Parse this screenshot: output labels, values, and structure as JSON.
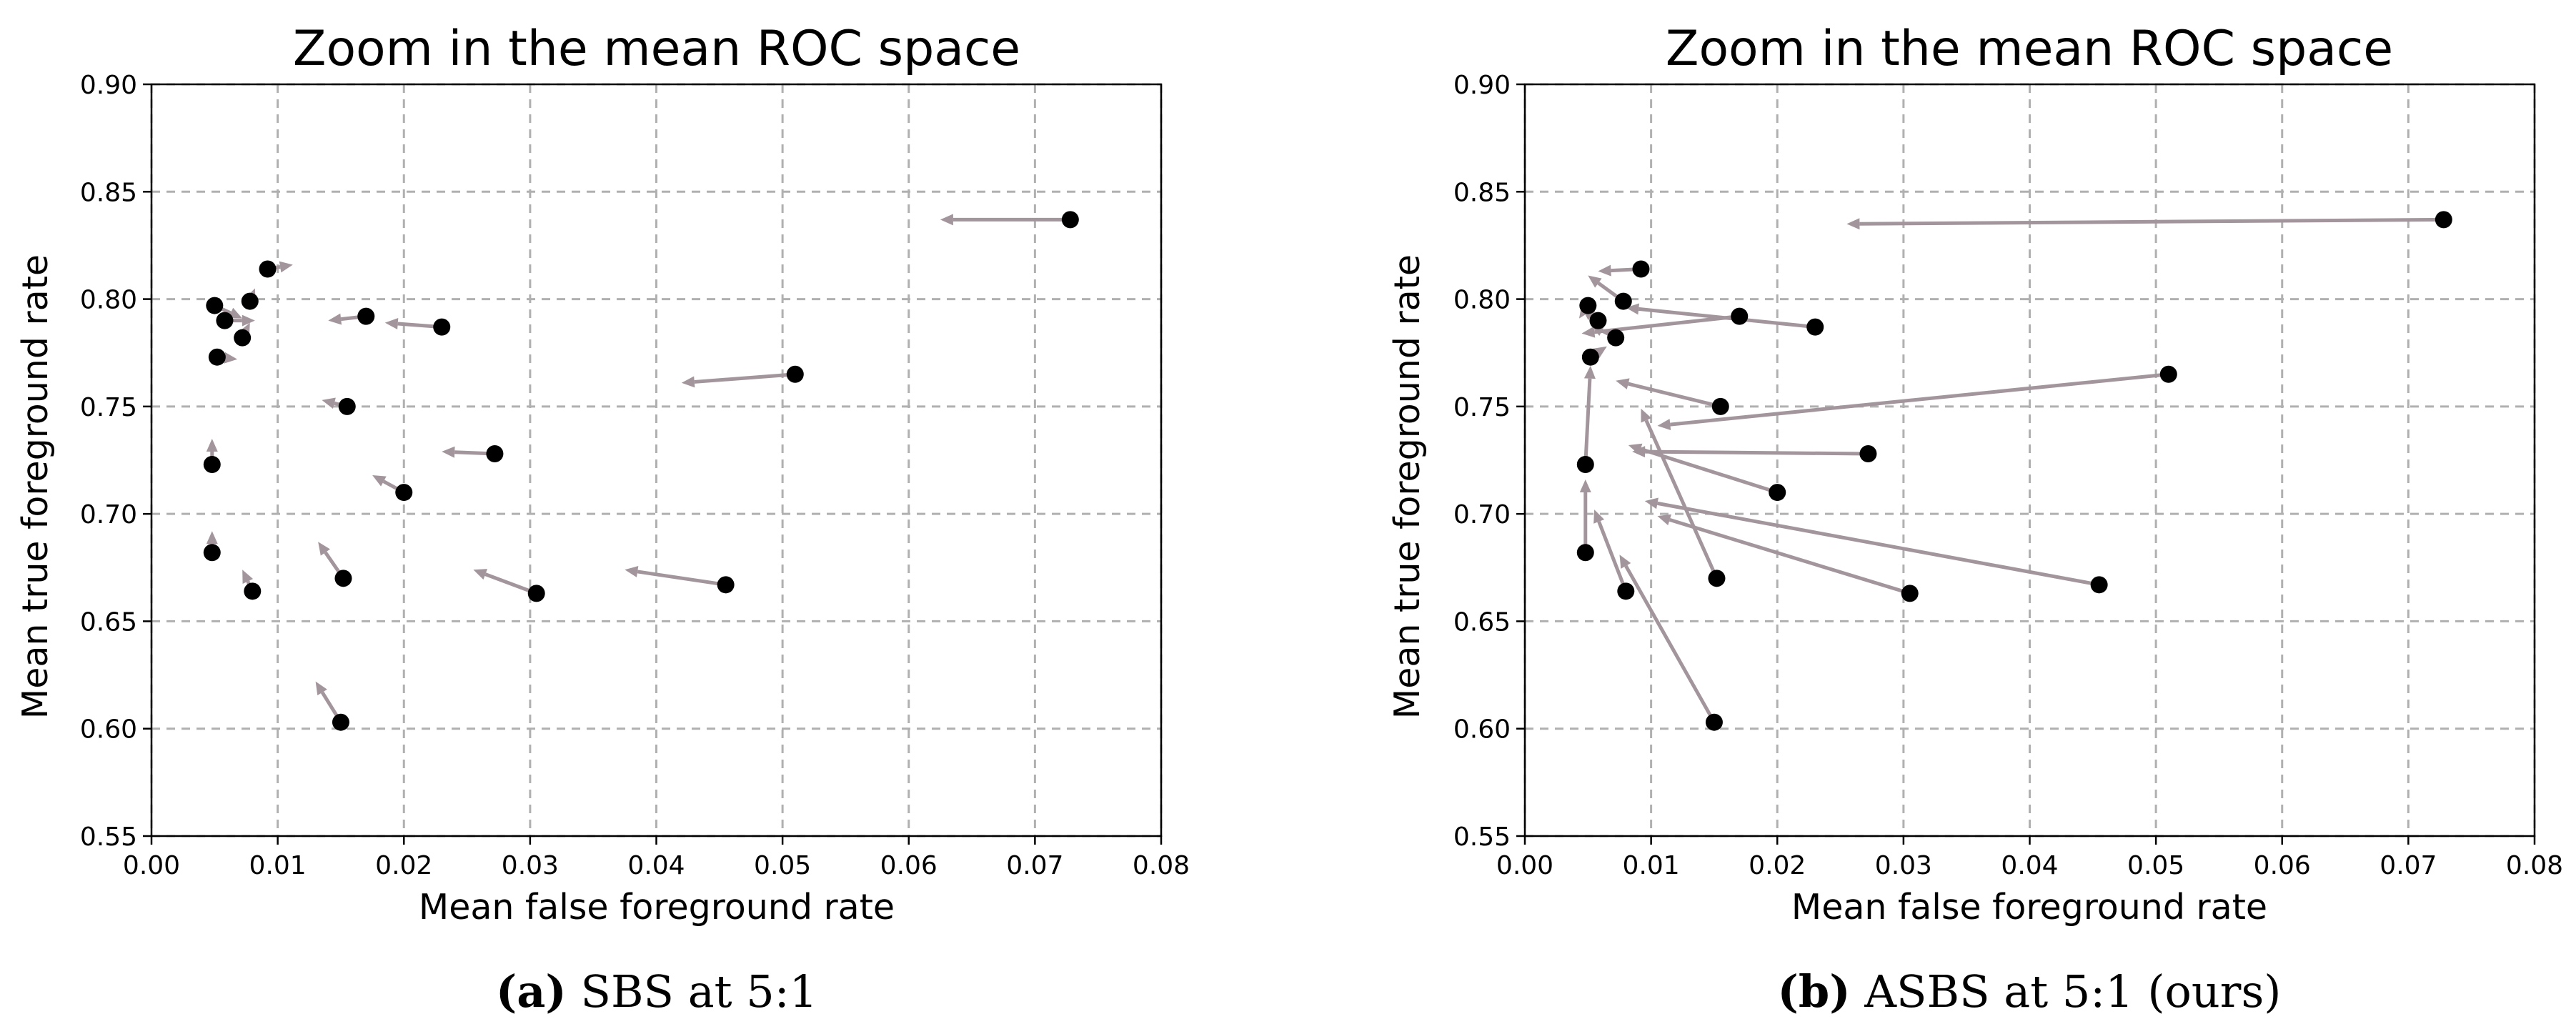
{
  "chart_data": [
    {
      "type": "scatter",
      "title": "Zoom in the mean ROC space",
      "xlabel": "Mean false foreground rate",
      "ylabel": "Mean true foreground rate",
      "xlim": [
        0.0,
        0.08
      ],
      "ylim": [
        0.55,
        0.9
      ],
      "xticks": [
        "0.00",
        "0.01",
        "0.02",
        "0.03",
        "0.04",
        "0.05",
        "0.06",
        "0.07",
        "0.08"
      ],
      "yticks": [
        "0.55",
        "0.60",
        "0.65",
        "0.70",
        "0.75",
        "0.80",
        "0.85",
        "0.90"
      ],
      "grid": true,
      "caption_id": "(a)",
      "caption_text": " SBS at 5:1",
      "points": [
        {
          "x": 0.0728,
          "y": 0.837,
          "x2": 0.0625,
          "y2": 0.837
        },
        {
          "x": 0.051,
          "y": 0.765,
          "x2": 0.042,
          "y2": 0.761
        },
        {
          "x": 0.0455,
          "y": 0.667,
          "x2": 0.0375,
          "y2": 0.674
        },
        {
          "x": 0.0305,
          "y": 0.663,
          "x2": 0.0255,
          "y2": 0.674
        },
        {
          "x": 0.0272,
          "y": 0.728,
          "x2": 0.023,
          "y2": 0.729
        },
        {
          "x": 0.023,
          "y": 0.787,
          "x2": 0.0185,
          "y2": 0.789
        },
        {
          "x": 0.02,
          "y": 0.71,
          "x2": 0.0175,
          "y2": 0.718
        },
        {
          "x": 0.017,
          "y": 0.792,
          "x2": 0.014,
          "y2": 0.79
        },
        {
          "x": 0.0155,
          "y": 0.75,
          "x2": 0.0135,
          "y2": 0.753
        },
        {
          "x": 0.0152,
          "y": 0.67,
          "x2": 0.0132,
          "y2": 0.687
        },
        {
          "x": 0.015,
          "y": 0.603,
          "x2": 0.013,
          "y2": 0.622
        },
        {
          "x": 0.0092,
          "y": 0.814,
          "x2": 0.0112,
          "y2": 0.816
        },
        {
          "x": 0.0078,
          "y": 0.799,
          "x2": 0.0082,
          "y2": 0.805
        },
        {
          "x": 0.0072,
          "y": 0.782,
          "x2": 0.0078,
          "y2": 0.789
        },
        {
          "x": 0.008,
          "y": 0.664,
          "x2": 0.0072,
          "y2": 0.674
        },
        {
          "x": 0.0058,
          "y": 0.79,
          "x2": 0.0082,
          "y2": 0.79
        },
        {
          "x": 0.005,
          "y": 0.797,
          "x2": 0.0072,
          "y2": 0.791
        },
        {
          "x": 0.0052,
          "y": 0.773,
          "x2": 0.0068,
          "y2": 0.772
        },
        {
          "x": 0.0048,
          "y": 0.723,
          "x2": 0.0048,
          "y2": 0.735
        },
        {
          "x": 0.0048,
          "y": 0.682,
          "x2": 0.0048,
          "y2": 0.692
        }
      ]
    },
    {
      "type": "scatter",
      "title": "Zoom in the mean ROC space",
      "xlabel": "Mean false foreground rate",
      "ylabel": "Mean true foreground rate",
      "xlim": [
        0.0,
        0.08
      ],
      "ylim": [
        0.55,
        0.9
      ],
      "xticks": [
        "0.00",
        "0.01",
        "0.02",
        "0.03",
        "0.04",
        "0.05",
        "0.06",
        "0.07",
        "0.08"
      ],
      "yticks": [
        "0.55",
        "0.60",
        "0.65",
        "0.70",
        "0.75",
        "0.80",
        "0.85",
        "0.90"
      ],
      "grid": true,
      "caption_id": "(b)",
      "caption_text": " ASBS at 5:1 (ours)",
      "points": [
        {
          "x": 0.0728,
          "y": 0.837,
          "x2": 0.0255,
          "y2": 0.835
        },
        {
          "x": 0.051,
          "y": 0.765,
          "x2": 0.0105,
          "y2": 0.741
        },
        {
          "x": 0.0455,
          "y": 0.667,
          "x2": 0.0095,
          "y2": 0.706
        },
        {
          "x": 0.0305,
          "y": 0.663,
          "x2": 0.0105,
          "y2": 0.699
        },
        {
          "x": 0.0272,
          "y": 0.728,
          "x2": 0.0085,
          "y2": 0.729
        },
        {
          "x": 0.023,
          "y": 0.787,
          "x2": 0.008,
          "y2": 0.796
        },
        {
          "x": 0.02,
          "y": 0.71,
          "x2": 0.0082,
          "y2": 0.732
        },
        {
          "x": 0.017,
          "y": 0.792,
          "x2": 0.0045,
          "y2": 0.784
        },
        {
          "x": 0.0155,
          "y": 0.75,
          "x2": 0.0072,
          "y2": 0.762
        },
        {
          "x": 0.0152,
          "y": 0.67,
          "x2": 0.0092,
          "y2": 0.749
        },
        {
          "x": 0.015,
          "y": 0.603,
          "x2": 0.0075,
          "y2": 0.681
        },
        {
          "x": 0.0092,
          "y": 0.814,
          "x2": 0.0058,
          "y2": 0.813
        },
        {
          "x": 0.0078,
          "y": 0.799,
          "x2": 0.005,
          "y2": 0.811
        },
        {
          "x": 0.0072,
          "y": 0.782,
          "x2": 0.0052,
          "y2": 0.788
        },
        {
          "x": 0.008,
          "y": 0.664,
          "x2": 0.0055,
          "y2": 0.702
        },
        {
          "x": 0.0058,
          "y": 0.79,
          "x2": 0.0045,
          "y2": 0.796
        },
        {
          "x": 0.005,
          "y": 0.797,
          "x2": 0.0043,
          "y2": 0.791
        },
        {
          "x": 0.0052,
          "y": 0.773,
          "x2": 0.0065,
          "y2": 0.778
        },
        {
          "x": 0.0048,
          "y": 0.723,
          "x2": 0.0052,
          "y2": 0.769
        },
        {
          "x": 0.0048,
          "y": 0.682,
          "x2": 0.0048,
          "y2": 0.716
        }
      ]
    }
  ]
}
